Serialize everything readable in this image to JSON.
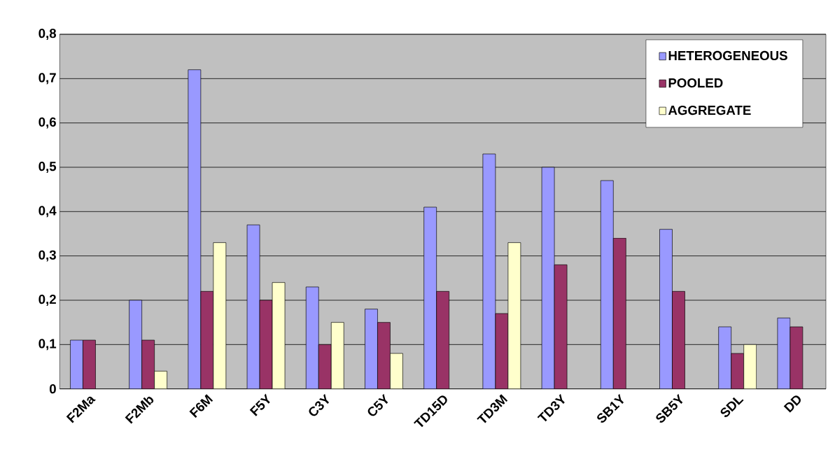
{
  "chart_data": {
    "type": "bar",
    "categories": [
      "F2Ma",
      "F2Mb",
      "F6M",
      "F5Y",
      "C3Y",
      "C5Y",
      "TD15D",
      "TD3M",
      "TD3Y",
      "SB1Y",
      "SB5Y",
      "SDL",
      "DD"
    ],
    "series": [
      {
        "name": "HETEROGENEOUS",
        "color": "#9999ff",
        "values": [
          0.11,
          0.2,
          0.72,
          0.37,
          0.23,
          0.18,
          0.41,
          0.53,
          0.5,
          0.47,
          0.36,
          0.14,
          0.16
        ]
      },
      {
        "name": "POOLED",
        "color": "#993366",
        "values": [
          0.11,
          0.11,
          0.22,
          0.2,
          0.1,
          0.15,
          0.22,
          0.17,
          0.28,
          0.34,
          0.22,
          0.08,
          0.14
        ]
      },
      {
        "name": "AGGREGATE",
        "color": "#ffffcc",
        "values": [
          null,
          0.04,
          0.33,
          0.24,
          0.15,
          0.08,
          null,
          0.33,
          null,
          null,
          null,
          0.1,
          null
        ]
      }
    ],
    "ylim": [
      0,
      0.8
    ],
    "yticks": [
      0,
      {
        "value": 0.1,
        "label": "0,1"
      },
      {
        "value": 0.2,
        "label": "0,2"
      },
      {
        "value": 0.3,
        "label": "0,3"
      },
      {
        "value": 0.4,
        "label": "0,4"
      },
      {
        "value": 0.5,
        "label": "0,5"
      },
      {
        "value": 0.6,
        "label": "0,6"
      },
      {
        "value": 0.7,
        "label": "0,7"
      },
      {
        "value": 0.8,
        "label": "0,8"
      }
    ],
    "grid": "y",
    "legend": "top right"
  }
}
